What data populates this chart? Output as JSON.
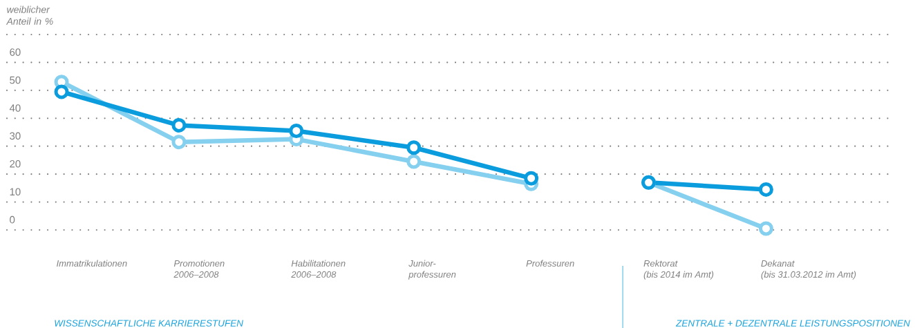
{
  "chart_data": {
    "type": "line",
    "ylabel": "weiblicher Anteil in %",
    "categories": [
      "Immatrikulationen",
      "Promotionen\n2006–2008",
      "Habilitationen\n2006–2008",
      "Junior-\nprofessuren",
      "Professuren",
      "Rektorat\n(bis 2014 im Amt)",
      "Dekanat\n(bis 31.03.2012 im Amt)"
    ],
    "series": [
      {
        "color": "#85cfef",
        "values": [
          53,
          31.5,
          32.5,
          24.5,
          16.5,
          null,
          null
        ]
      },
      {
        "color": "#0a9cdc",
        "values": [
          49.5,
          37.5,
          35.5,
          29.5,
          18.5,
          null,
          null
        ]
      },
      {
        "color": "#85cfef",
        "values": [
          null,
          null,
          null,
          null,
          null,
          17,
          0.5
        ]
      },
      {
        "color": "#0a9cdc",
        "values": [
          null,
          null,
          null,
          null,
          null,
          17,
          14.5
        ]
      }
    ],
    "ylim": [
      0,
      70
    ],
    "yticks": [
      0,
      10,
      20,
      30,
      40,
      50,
      60,
      {
        "value": 70,
        "label": null
      }
    ],
    "grid": "y",
    "marker": "circle",
    "line_style": "solid",
    "annotations": [
      "WISSENSCHAFTLICHE KARRIERESTUFEN",
      "ZENTRALE + DEZENTRALE LEISTUNGSPOSITIONEN"
    ]
  }
}
